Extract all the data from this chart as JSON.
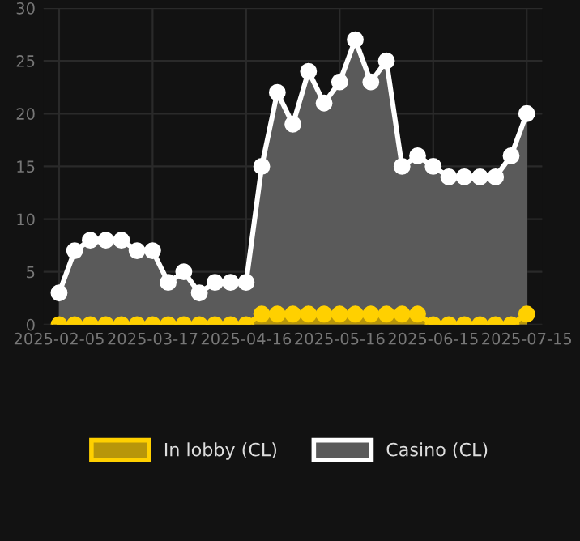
{
  "chart_data": {
    "type": "area",
    "categories": [
      "2025-02-05",
      null,
      null,
      null,
      null,
      null,
      "2025-03-17",
      null,
      null,
      null,
      null,
      null,
      "2025-04-16",
      null,
      null,
      null,
      null,
      null,
      "2025-05-16",
      null,
      null,
      null,
      null,
      null,
      "2025-06-15",
      null,
      null,
      null,
      null,
      null,
      "2025-07-15"
    ],
    "series": [
      {
        "name": "In lobby (CL)",
        "color": "#ffd000",
        "values": [
          0,
          0,
          0,
          0,
          0,
          0,
          0,
          0,
          0,
          0,
          0,
          0,
          0,
          1,
          1,
          1,
          1,
          1,
          1,
          1,
          1,
          1,
          1,
          1,
          0,
          0,
          0,
          0,
          0,
          0,
          1
        ]
      },
      {
        "name": "Casino (CL)",
        "color": "#ffffff",
        "values": [
          3,
          7,
          8,
          8,
          8,
          7,
          7,
          4,
          5,
          3,
          4,
          4,
          4,
          15,
          22,
          19,
          24,
          21,
          23,
          27,
          23,
          25,
          15,
          16,
          15,
          14,
          14,
          14,
          14,
          16,
          20
        ]
      }
    ],
    "ylim": [
      0,
      30
    ],
    "yticks": [
      0,
      5,
      10,
      15,
      20,
      25,
      30
    ],
    "grid": true,
    "legend": "bottom",
    "marker": "circle",
    "line_style": "solid"
  }
}
